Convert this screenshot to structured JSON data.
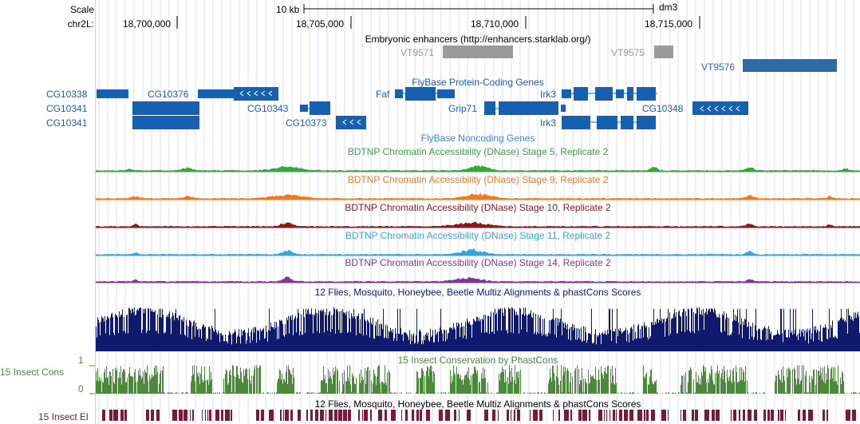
{
  "ruler": {
    "scale_label": "Scale",
    "scale_bar_label": "10 kb",
    "assembly": "dm3",
    "chrom_label": "chr2L:",
    "ticks": [
      "18,700,000",
      "18,705,000",
      "18,710,000",
      "18,715,000"
    ]
  },
  "enhancers": {
    "title": "Embryonic enhancers (http://enhancers.starklab.org/)",
    "items": [
      "VT9571",
      "VT9575",
      "VT9576"
    ]
  },
  "coding_genes": {
    "title": "FlyBase Protein-Coding Genes",
    "left_labels": [
      "CG10338",
      "CG10341",
      "CG10341"
    ],
    "items": [
      "CG10376",
      "CG10343",
      "CG10373",
      "Faf",
      "Grip71",
      "Irk3",
      "Irk3",
      "CG10348"
    ]
  },
  "noncoding_genes": {
    "title": "FlyBase Noncoding Genes"
  },
  "dnase_tracks": [
    {
      "title": "BDTNP Chromatin Accessibility (DNase) Stage 5, Replicate 2",
      "color": "#3aa63a"
    },
    {
      "title": "BDTNP Chromatin Accessibility (DNase) Stage 9, Replicate 2",
      "color": "#f07a22"
    },
    {
      "title": "BDTNP Chromatin Accessibility (DNase) Stage 10, Replicate 2",
      "color": "#8c1a1a"
    },
    {
      "title": "BDTNP Chromatin Accessibility (DNase) Stage 11, Replicate 2",
      "color": "#3aa5d2"
    },
    {
      "title": "BDTNP Chromatin Accessibility (DNase) Stage 14, Replicate 2",
      "color": "#7a3a9a"
    }
  ],
  "multiz": {
    "title": "12 Flies, Mosquito, Honeybee, Beetle Multiz Alignments & phastCons Scores",
    "color": "#0f1a6e"
  },
  "cons15": {
    "title": "15 Insect Conservation by PhastCons",
    "label": "15 Insect Cons",
    "y_max": "1",
    "y_min": "0",
    "color": "#4a8a3a"
  },
  "elements": {
    "title": "12 Flies, Mosquito, Honeybee, Beetle Multiz Alignments & phastCons Scores",
    "label": "15 Insect El",
    "color": "#7a1a3a"
  }
}
